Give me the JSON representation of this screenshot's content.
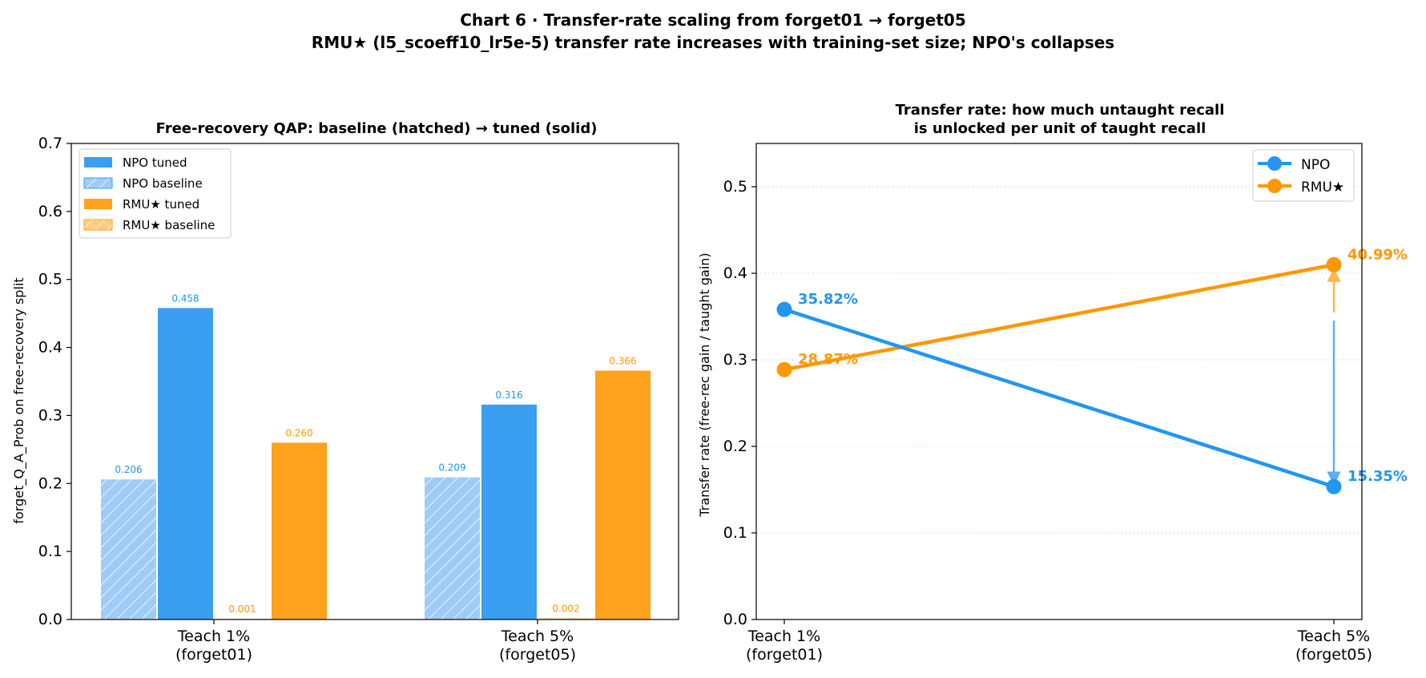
{
  "figure": {
    "title_line1": "Chart 6 · Transfer-rate scaling from forget01 → forget05",
    "title_line2": "RMU★ (l5_scoeff10_lr5e-5) transfer rate increases with training-set size; NPO's collapses"
  },
  "colors": {
    "npo": "#2196F3",
    "npo_bar": "#3A9FF1",
    "npo_baseline": "#9FCBF7",
    "rmu": "#FF9800",
    "rmu_bar": "#FFA21E",
    "rmu_baseline": "#FFCC80"
  },
  "chart_data": [
    {
      "type": "bar",
      "title": "Free-recovery QAP: baseline (hatched) → tuned (solid)",
      "xlabel": "",
      "ylabel": "forget_Q_A_Prob on free-recovery split",
      "ylim": [
        0,
        0.7
      ],
      "yticks": [
        "0.0",
        "0.1",
        "0.2",
        "0.3",
        "0.4",
        "0.5",
        "0.6",
        "0.7"
      ],
      "categories": [
        [
          "Teach 1%",
          "(forget01)"
        ],
        [
          "Teach 5%",
          "(forget05)"
        ]
      ],
      "series": [
        {
          "name": "NPO baseline",
          "key": "npo_baseline",
          "hatched": true,
          "values": [
            0.206,
            0.209
          ],
          "labels": [
            "0.206",
            "0.209"
          ]
        },
        {
          "name": "NPO tuned",
          "key": "npo_tuned",
          "hatched": false,
          "values": [
            0.458,
            0.316
          ],
          "labels": [
            "0.458",
            "0.316"
          ]
        },
        {
          "name": "RMU★ baseline",
          "key": "rmu_baseline",
          "hatched": true,
          "values": [
            0.001,
            0.002
          ],
          "labels": [
            "0.001",
            "0.002"
          ]
        },
        {
          "name": "RMU★ tuned",
          "key": "rmu_tuned",
          "hatched": false,
          "values": [
            0.26,
            0.366
          ],
          "labels": [
            "0.260",
            "0.366"
          ]
        }
      ],
      "legend": {
        "placement": "top-left",
        "entries": [
          "NPO tuned",
          "NPO baseline",
          "RMU★ tuned",
          "RMU★ baseline"
        ]
      },
      "grid": false
    },
    {
      "type": "line",
      "title_line1": "Transfer rate: how much untaught recall",
      "title_line2": "is unlocked per unit of taught recall",
      "xlabel": "",
      "ylabel": "Transfer rate  (free-rec gain / taught gain)",
      "ylim": [
        0,
        0.55
      ],
      "yticks": [
        "0.0",
        "0.1",
        "0.2",
        "0.3",
        "0.4",
        "0.5"
      ],
      "categories": [
        [
          "Teach 1%",
          "(forget01)"
        ],
        [
          "Teach 5%",
          "(forget05)"
        ]
      ],
      "series": [
        {
          "name": "NPO",
          "key": "npo",
          "values": [
            0.3582,
            0.1535
          ],
          "labels": [
            "35.82%",
            "15.35%"
          ]
        },
        {
          "name": "RMU★",
          "key": "rmu",
          "values": [
            0.2887,
            0.4099
          ],
          "labels": [
            "28.87%",
            "40.99%"
          ]
        }
      ],
      "legend": {
        "placement": "top-right",
        "entries": [
          "NPO",
          "RMU★"
        ]
      },
      "grid": "y-dotted",
      "annotations": "arrows at Teach 5% from mid-range toward NPO (down) and RMU★ (up)"
    }
  ]
}
